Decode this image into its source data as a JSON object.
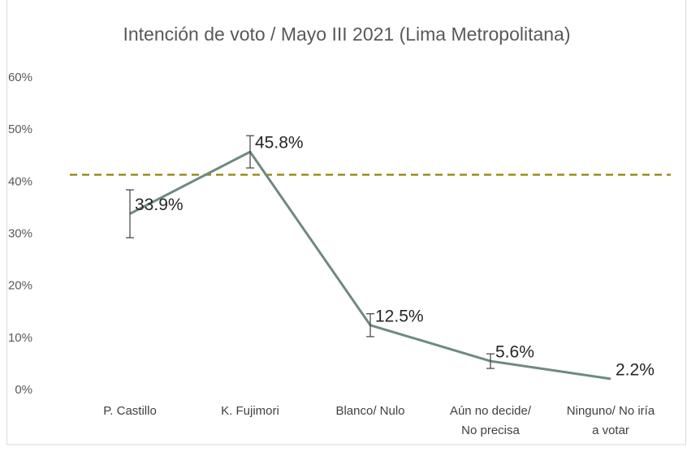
{
  "chart_data": {
    "type": "line",
    "title": "Intención de voto / Mayo III 2021 (Lima Metropolitana)",
    "categories": [
      "P. Castillo",
      "K. Fujimori",
      "Blanco/ Nulo",
      "Aún no decide/\nNo precisa",
      "Ninguno/ No iría\na votar"
    ],
    "series": [
      {
        "name": "Intención de voto",
        "color": "#6e8b7c",
        "values": [
          33.9,
          45.8,
          12.5,
          5.6,
          2.2
        ],
        "value_labels": [
          "33.9%",
          "45.8%",
          "12.5%",
          "5.6%",
          "2.2%"
        ],
        "errors": [
          4.6,
          3.1,
          2.2,
          1.4,
          null
        ]
      }
    ],
    "reference_line": {
      "value": 41.4,
      "color": "#9a8c1e",
      "style": "dashed"
    },
    "ylim": [
      0,
      60
    ],
    "yticks": [
      {
        "value": 0,
        "label": "0%"
      },
      {
        "value": 10,
        "label": "10%"
      },
      {
        "value": 20,
        "label": "20%"
      },
      {
        "value": 30,
        "label": "30%"
      },
      {
        "value": 40,
        "label": "40%"
      },
      {
        "value": 50,
        "label": "50%"
      },
      {
        "value": 60,
        "label": "60%"
      }
    ],
    "grid": false
  }
}
